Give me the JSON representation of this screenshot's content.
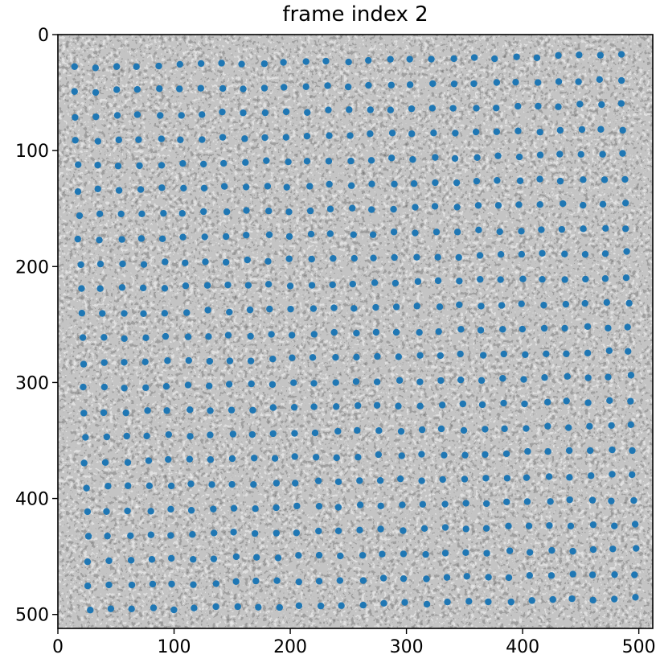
{
  "chart_data": {
    "type": "scatter",
    "title": "frame index 2",
    "image_background": "grayscale speckle microscopy frame (tilted, black borders)",
    "x_ticks": [
      "0",
      "100",
      "200",
      "300",
      "400",
      "500"
    ],
    "y_ticks": [
      "0",
      "100",
      "200",
      "300",
      "400",
      "500"
    ],
    "xlim": [
      0,
      512
    ],
    "ylim": [
      512,
      0
    ],
    "y_inverted": true,
    "grid": false,
    "marker_color": "#1f77b4",
    "series": [
      {
        "grid_model": "tilted lattice of detected points",
        "rows": 23,
        "cols": 27,
        "origin": [
          14,
          28
        ],
        "col_step": [
          18.1,
          -0.4
        ],
        "row_step": [
          0.6,
          21.3
        ],
        "points_sample": [
          [
            14,
            28
          ],
          [
            32,
            27
          ],
          [
            50,
            27
          ],
          [
            68,
            26
          ],
          [
            88,
            25
          ],
          [
            14,
            50
          ],
          [
            15,
            70
          ],
          [
            16,
            91
          ],
          [
            16,
            112
          ],
          [
            17,
            133
          ]
        ]
      }
    ]
  },
  "colors": {
    "speckle_dark": "#2b2b2b",
    "speckle_light": "#e9e9e9",
    "border": "#000000"
  }
}
